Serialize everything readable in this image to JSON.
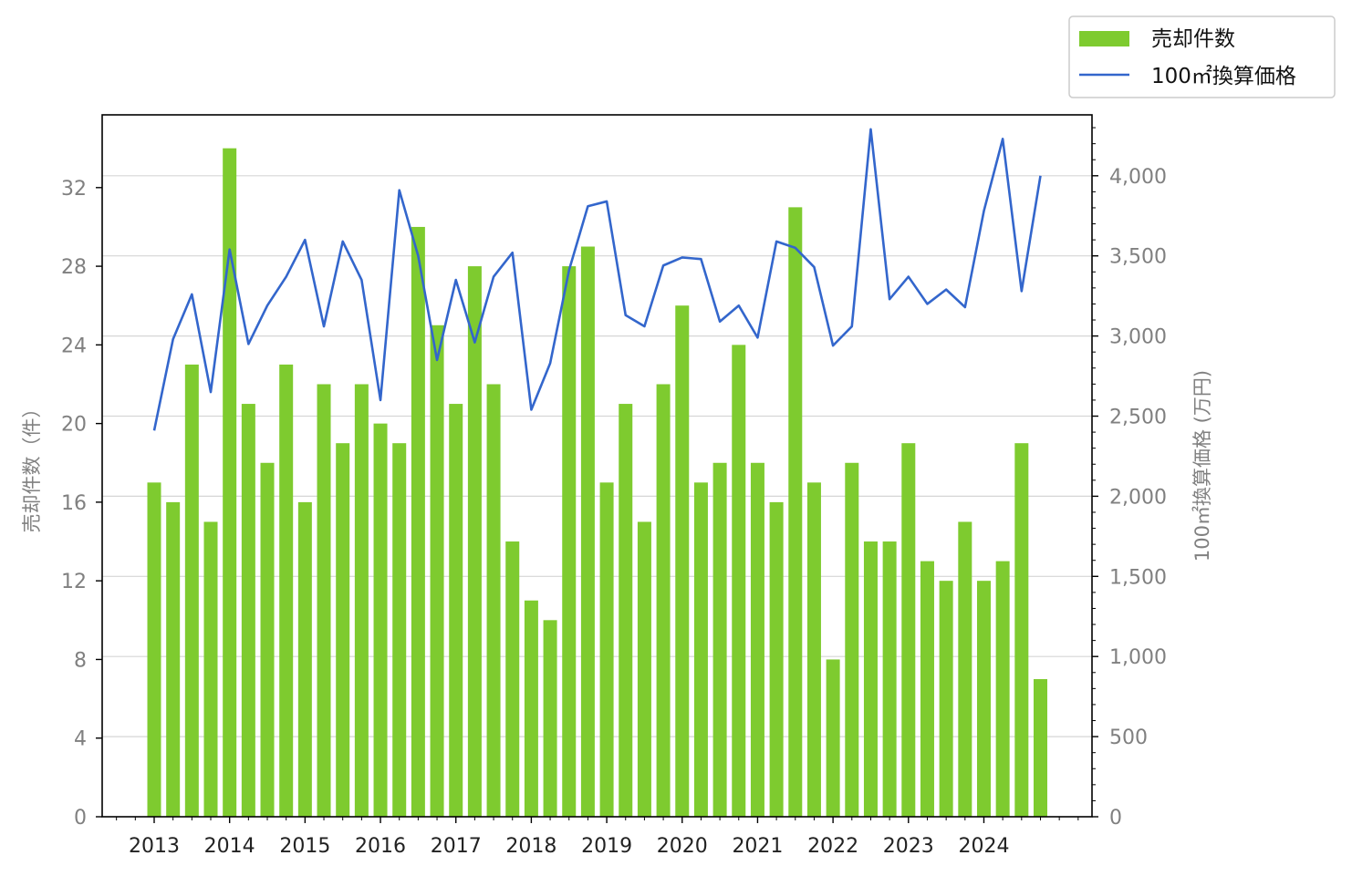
{
  "chart_data": {
    "type": "bar",
    "x_tick_labels": [
      "2013",
      "2014",
      "2015",
      "2016",
      "2017",
      "2018",
      "2019",
      "2020",
      "2021",
      "2022",
      "2023",
      "2024"
    ],
    "ylabel_left": "売却件数（件）",
    "ylabel_right": "100㎡換算価格 (万円)",
    "ylim_left": [
      0,
      35.7
    ],
    "ylim_right": [
      0,
      4380
    ],
    "yticks_left": [
      "0",
      "4",
      "8",
      "12",
      "16",
      "20",
      "24",
      "28",
      "32"
    ],
    "yticks_right": [
      "0",
      "500",
      "1,000",
      "1,500",
      "2,000",
      "2,500",
      "3,000",
      "3,500",
      "4,000"
    ],
    "grid": "horizontal",
    "legend_position": "top-right",
    "series": [
      {
        "name": "売却件数",
        "type": "bar",
        "axis": "left",
        "color": "#7ecb2f",
        "values": [
          17,
          16,
          23,
          15,
          34,
          21,
          18,
          23,
          16,
          22,
          19,
          22,
          20,
          19,
          30,
          25,
          21,
          28,
          22,
          14,
          11,
          10,
          28,
          29,
          17,
          21,
          15,
          22,
          26,
          17,
          18,
          24,
          18,
          16,
          31,
          17,
          8,
          18,
          14,
          14,
          19,
          13,
          12,
          15,
          12,
          13,
          19,
          7
        ]
      },
      {
        "name": "100㎡換算価格",
        "type": "line",
        "axis": "right",
        "color": "#3366cc",
        "values": [
          2410,
          2980,
          3260,
          2650,
          3540,
          2950,
          3190,
          3370,
          3600,
          3060,
          3590,
          3350,
          2600,
          3910,
          3500,
          2850,
          3350,
          2960,
          3370,
          3520,
          2540,
          2830,
          3410,
          3810,
          3840,
          3130,
          3060,
          3440,
          3490,
          3480,
          3090,
          3190,
          2990,
          3590,
          3550,
          3430,
          2940,
          3060,
          4290,
          3230,
          3370,
          3200,
          3290,
          3180,
          3780,
          4230,
          3280,
          4000
        ]
      }
    ]
  }
}
